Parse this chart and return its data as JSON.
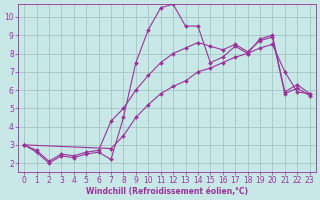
{
  "background_color": "#c8e8e8",
  "grid_color": "#9fbfbf",
  "line_color": "#993399",
  "xlim": [
    -0.5,
    23.5
  ],
  "ylim": [
    1.5,
    10.7
  ],
  "xlabel": "Windchill (Refroidissement éolien,°C)",
  "xlabel_fontsize": 5.5,
  "xticks": [
    0,
    1,
    2,
    3,
    4,
    5,
    6,
    7,
    8,
    9,
    10,
    11,
    12,
    13,
    14,
    15,
    16,
    17,
    18,
    19,
    20,
    21,
    22,
    23
  ],
  "yticks": [
    2,
    3,
    4,
    5,
    6,
    7,
    8,
    9,
    10
  ],
  "tick_fontsize": 5.5,
  "line1_x": [
    0,
    1,
    2,
    3,
    4,
    5,
    6,
    7,
    8,
    9,
    10,
    11,
    12,
    13,
    14,
    15,
    16,
    17,
    18,
    19,
    20,
    21,
    22,
    23
  ],
  "line1_y": [
    3.0,
    2.6,
    2.0,
    2.4,
    2.3,
    2.5,
    2.6,
    2.2,
    4.5,
    7.5,
    9.3,
    10.5,
    10.7,
    9.5,
    9.5,
    7.5,
    7.8,
    8.4,
    8.0,
    8.8,
    9.0,
    5.9,
    6.3,
    5.8
  ],
  "line2_x": [
    0,
    1,
    2,
    3,
    4,
    5,
    6,
    7,
    8,
    9,
    10,
    11,
    12,
    13,
    14,
    15,
    16,
    17,
    18,
    19,
    20,
    21,
    22,
    23
  ],
  "line2_y": [
    3.0,
    2.7,
    2.1,
    2.5,
    2.4,
    2.6,
    2.7,
    4.3,
    5.0,
    6.0,
    6.8,
    7.5,
    8.0,
    8.3,
    8.6,
    8.4,
    8.2,
    8.5,
    8.1,
    8.7,
    8.9,
    5.8,
    6.1,
    5.7
  ],
  "line3_x": [
    0,
    7,
    8,
    9,
    10,
    11,
    12,
    13,
    14,
    15,
    16,
    17,
    18,
    19,
    20,
    21,
    22,
    23
  ],
  "line3_y": [
    3.0,
    2.8,
    3.5,
    4.5,
    5.2,
    5.8,
    6.2,
    6.5,
    7.0,
    7.2,
    7.5,
    7.8,
    8.0,
    8.3,
    8.5,
    7.0,
    5.9,
    5.8
  ]
}
